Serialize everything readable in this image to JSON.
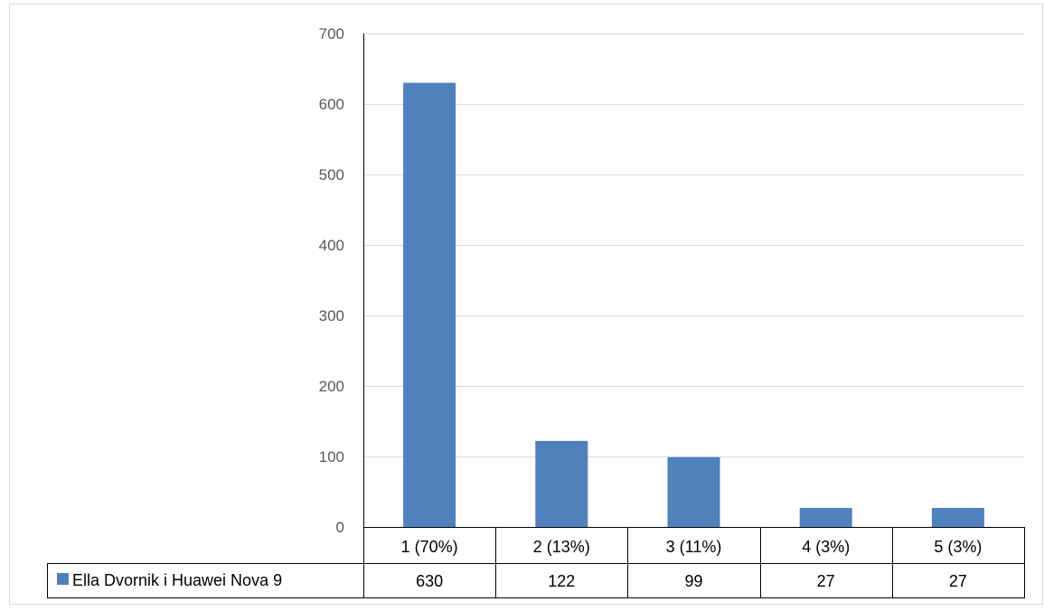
{
  "chart_data": {
    "type": "bar",
    "categories": [
      "1 (70%)",
      "2 (13%)",
      "3 (11%)",
      "4 (3%)",
      "5 (3%)"
    ],
    "series": [
      {
        "name": "Ella Dvornik i Huawei Nova 9",
        "values": [
          630,
          122,
          99,
          27,
          27
        ],
        "value_labels": [
          "630",
          "122",
          "99",
          "27",
          "27"
        ]
      }
    ],
    "ylim": [
      0,
      700
    ],
    "yticks": [
      0,
      100,
      200,
      300,
      400,
      500,
      600,
      700
    ],
    "ytick_labels": [
      "0",
      "100",
      "200",
      "300",
      "400",
      "500",
      "600",
      "700"
    ],
    "grid": true,
    "data_table": true,
    "legend": "data-table-left",
    "colors": {
      "bar": "#4f81bd",
      "grid": "#d9d9d9",
      "axis_text": "#595959",
      "table_border": "#000000",
      "frame": "#d9d9d9"
    }
  }
}
